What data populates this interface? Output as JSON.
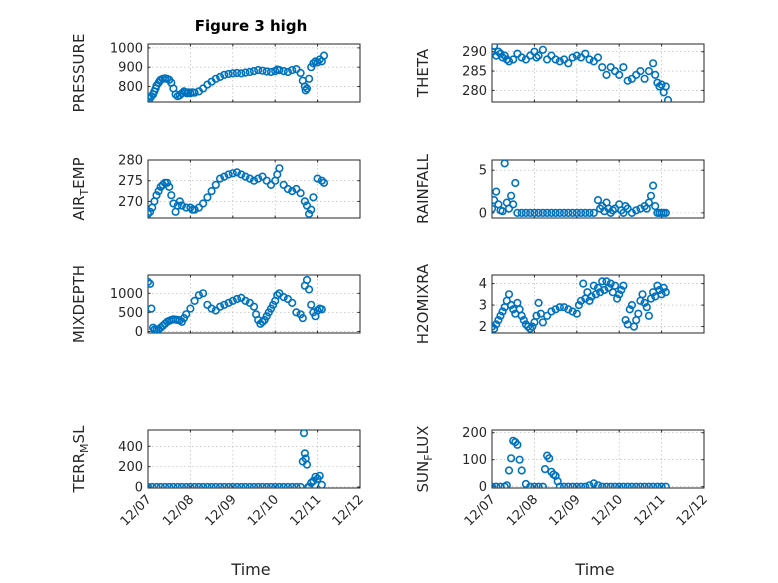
{
  "figure": {
    "title": "Figure 3 high",
    "xlabel": "Time"
  },
  "chart_data": [
    {
      "type": "scatter",
      "ylabel": "PRESSURE",
      "ylabel_sub": "",
      "ylabel_post": "",
      "xlim": [
        "12/07",
        "12/12"
      ],
      "xticks": [
        "12/07",
        "12/08",
        "12/09",
        "12/10",
        "12/11",
        "12/12"
      ],
      "ylim": [
        720,
        1020
      ],
      "yticks": [
        800,
        900,
        1000
      ],
      "grid": true,
      "marker_color": "#0072BD",
      "x": [
        0.0,
        0.05,
        0.08,
        0.12,
        0.15,
        0.18,
        0.2,
        0.25,
        0.28,
        0.3,
        0.35,
        0.4,
        0.45,
        0.5,
        0.55,
        0.6,
        0.65,
        0.7,
        0.75,
        0.8,
        0.85,
        0.88,
        0.92,
        0.95,
        1.0,
        1.05,
        1.1,
        1.2,
        1.3,
        1.4,
        1.5,
        1.6,
        1.7,
        1.8,
        1.9,
        2.0,
        2.1,
        2.2,
        2.3,
        2.4,
        2.5,
        2.6,
        2.7,
        2.8,
        2.9,
        3.0,
        3.05,
        3.1,
        3.2,
        3.3,
        3.4,
        3.5,
        3.6,
        3.65,
        3.7,
        3.72,
        3.75,
        3.8,
        3.85,
        3.9,
        3.95,
        4.0,
        4.05,
        4.1,
        4.15
      ],
      "y": [
        745,
        740,
        750,
        760,
        775,
        790,
        805,
        820,
        830,
        835,
        840,
        842,
        840,
        835,
        820,
        790,
        760,
        750,
        755,
        765,
        775,
        770,
        765,
        770,
        765,
        770,
        768,
        775,
        790,
        810,
        825,
        840,
        850,
        860,
        865,
        868,
        870,
        868,
        872,
        875,
        880,
        885,
        882,
        878,
        875,
        880,
        888,
        885,
        880,
        875,
        885,
        890,
        870,
        830,
        800,
        780,
        790,
        840,
        900,
        920,
        930,
        925,
        940,
        930,
        960
      ]
    },
    {
      "type": "scatter",
      "ylabel": "THETA",
      "ylabel_sub": "",
      "ylabel_post": "",
      "xlim": [
        "12/07",
        "12/12"
      ],
      "xticks": [
        "12/07",
        "12/08",
        "12/09",
        "12/10",
        "12/11",
        "12/12"
      ],
      "ylim": [
        277,
        292
      ],
      "yticks": [
        280,
        285,
        290
      ],
      "grid": true,
      "marker_color": "#0072BD",
      "x": [
        0.0,
        0.05,
        0.1,
        0.15,
        0.2,
        0.25,
        0.3,
        0.35,
        0.4,
        0.5,
        0.6,
        0.7,
        0.8,
        0.9,
        1.0,
        1.05,
        1.1,
        1.2,
        1.3,
        1.4,
        1.5,
        1.6,
        1.7,
        1.8,
        1.9,
        2.0,
        2.1,
        2.2,
        2.3,
        2.4,
        2.5,
        2.6,
        2.7,
        2.8,
        2.9,
        3.0,
        3.1,
        3.2,
        3.3,
        3.4,
        3.5,
        3.6,
        3.7,
        3.8,
        3.85,
        3.9,
        3.95,
        4.0,
        4.05,
        4.1,
        4.15
      ],
      "y": [
        290,
        291.5,
        289,
        290,
        289.5,
        288.5,
        289,
        288,
        287.5,
        288,
        289.5,
        288.5,
        288,
        289,
        290,
        288.5,
        289,
        290.5,
        288,
        289,
        288,
        287.5,
        288,
        287,
        288.5,
        289,
        288.5,
        289.5,
        288,
        287.5,
        288.5,
        286,
        284,
        286,
        285,
        284,
        286,
        282.5,
        283,
        284,
        285,
        283,
        285,
        287,
        284,
        282,
        281,
        281.5,
        279.5,
        281,
        277.5
      ]
    },
    {
      "type": "scatter",
      "ylabel": "AIR",
      "ylabel_sub": "T",
      "ylabel_post": "EMP",
      "xlim": [
        "12/07",
        "12/12"
      ],
      "xticks": [
        "12/07",
        "12/08",
        "12/09",
        "12/10",
        "12/11",
        "12/12"
      ],
      "ylim": [
        266,
        280
      ],
      "yticks": [
        270,
        275,
        280
      ],
      "grid": true,
      "marker_color": "#0072BD",
      "x": [
        0.0,
        0.05,
        0.1,
        0.15,
        0.2,
        0.25,
        0.3,
        0.35,
        0.4,
        0.45,
        0.5,
        0.55,
        0.6,
        0.65,
        0.7,
        0.75,
        0.8,
        0.9,
        1.0,
        1.05,
        1.1,
        1.2,
        1.3,
        1.4,
        1.5,
        1.6,
        1.7,
        1.8,
        1.9,
        2.0,
        2.1,
        2.2,
        2.3,
        2.4,
        2.5,
        2.6,
        2.7,
        2.8,
        2.9,
        3.0,
        3.05,
        3.1,
        3.2,
        3.3,
        3.4,
        3.5,
        3.6,
        3.7,
        3.75,
        3.8,
        3.85,
        3.9,
        4.0,
        4.1,
        4.15
      ],
      "y": [
        267,
        267.5,
        268.5,
        270,
        271.5,
        272.5,
        273.5,
        274,
        274.5,
        274.5,
        273.5,
        271.5,
        269.5,
        267.5,
        269,
        270,
        269,
        268.5,
        268.5,
        268,
        268,
        268.5,
        269.5,
        271,
        272.5,
        274,
        275.5,
        276,
        276.5,
        276.8,
        277,
        276.5,
        276,
        275.5,
        275,
        275.5,
        276,
        275,
        274,
        275,
        276.5,
        278,
        274,
        273,
        272.5,
        273,
        272,
        270,
        269,
        267,
        268,
        271,
        275.5,
        275,
        274.5
      ]
    },
    {
      "type": "scatter",
      "ylabel": "RAINFALL",
      "ylabel_sub": "",
      "ylabel_post": "",
      "xlim": [
        "12/07",
        "12/12"
      ],
      "xticks": [
        "12/07",
        "12/08",
        "12/09",
        "12/10",
        "12/11",
        "12/12"
      ],
      "ylim": [
        -0.6,
        6.2
      ],
      "yticks": [
        0,
        5
      ],
      "grid": true,
      "marker_color": "#0072BD",
      "x": [
        0.0,
        0.05,
        0.1,
        0.15,
        0.2,
        0.25,
        0.3,
        0.35,
        0.4,
        0.45,
        0.5,
        0.55,
        0.6,
        0.7,
        0.8,
        0.9,
        1.0,
        1.1,
        1.2,
        1.3,
        1.4,
        1.5,
        1.6,
        1.7,
        1.8,
        1.9,
        2.0,
        2.1,
        2.2,
        2.3,
        2.4,
        2.5,
        2.55,
        2.6,
        2.65,
        2.7,
        2.75,
        2.8,
        2.85,
        2.9,
        3.0,
        3.05,
        3.1,
        3.15,
        3.2,
        3.3,
        3.4,
        3.5,
        3.6,
        3.65,
        3.7,
        3.75,
        3.8,
        3.85,
        3.9,
        3.95,
        4.0,
        4.05,
        4.1
      ],
      "y": [
        0.5,
        1.5,
        2.5,
        1.0,
        0.3,
        0.2,
        5.8,
        1.2,
        0.5,
        2.0,
        1.0,
        3.5,
        0.0,
        0.0,
        0.0,
        0.0,
        0.0,
        0.0,
        0.0,
        0.0,
        0.0,
        0.0,
        0.0,
        0.0,
        0.0,
        0.0,
        0.0,
        0.0,
        0.0,
        0.0,
        0.0,
        1.5,
        0.5,
        0.8,
        0.2,
        1.2,
        0.5,
        0.0,
        0.3,
        0.5,
        1.0,
        0.3,
        0.0,
        0.8,
        0.5,
        0.0,
        0.3,
        0.5,
        0.8,
        0.5,
        1.2,
        2.0,
        3.2,
        0.8,
        0.0,
        0.0,
        0.0,
        0.0,
        0.0
      ]
    },
    {
      "type": "scatter",
      "ylabel": "MIXDEPTH",
      "ylabel_sub": "",
      "ylabel_post": "",
      "xlim": [
        "12/07",
        "12/12"
      ],
      "xticks": [
        "12/07",
        "12/08",
        "12/09",
        "12/10",
        "12/11",
        "12/12"
      ],
      "ylim": [
        -40,
        1480
      ],
      "yticks": [
        0,
        500,
        1000
      ],
      "grid": true,
      "marker_color": "#0072BD",
      "x": [
        0.0,
        0.05,
        0.08,
        0.12,
        0.15,
        0.2,
        0.25,
        0.3,
        0.35,
        0.4,
        0.45,
        0.5,
        0.55,
        0.6,
        0.65,
        0.7,
        0.75,
        0.8,
        0.85,
        0.9,
        1.0,
        1.1,
        1.2,
        1.3,
        1.4,
        1.5,
        1.6,
        1.7,
        1.8,
        1.9,
        2.0,
        2.1,
        2.2,
        2.3,
        2.4,
        2.5,
        2.55,
        2.6,
        2.65,
        2.7,
        2.75,
        2.8,
        2.85,
        2.9,
        2.95,
        3.0,
        3.05,
        3.1,
        3.2,
        3.3,
        3.4,
        3.5,
        3.6,
        3.65,
        3.7,
        3.75,
        3.8,
        3.85,
        3.9,
        3.95,
        4.0,
        4.05,
        4.1
      ],
      "y": [
        1300,
        1250,
        600,
        100,
        50,
        40,
        60,
        100,
        150,
        200,
        250,
        280,
        300,
        320,
        310,
        300,
        290,
        250,
        350,
        450,
        600,
        800,
        950,
        1000,
        700,
        600,
        550,
        650,
        700,
        750,
        800,
        850,
        880,
        800,
        750,
        650,
        450,
        300,
        200,
        250,
        300,
        400,
        500,
        600,
        700,
        800,
        950,
        1000,
        900,
        850,
        750,
        500,
        450,
        350,
        1200,
        1350,
        1100,
        700,
        500,
        400,
        550,
        600,
        580
      ]
    },
    {
      "type": "scatter",
      "ylabel": "H2OMIXRA",
      "ylabel_sub": "",
      "ylabel_post": "",
      "xlim": [
        "12/07",
        "12/12"
      ],
      "xticks": [
        "12/07",
        "12/08",
        "12/09",
        "12/10",
        "12/11",
        "12/12"
      ],
      "ylim": [
        1.7,
        4.4
      ],
      "yticks": [
        2,
        3,
        4
      ],
      "grid": true,
      "marker_color": "#0072BD",
      "x": [
        0.0,
        0.05,
        0.1,
        0.15,
        0.2,
        0.25,
        0.3,
        0.35,
        0.4,
        0.45,
        0.5,
        0.55,
        0.6,
        0.65,
        0.7,
        0.75,
        0.8,
        0.85,
        0.9,
        0.95,
        1.0,
        1.05,
        1.1,
        1.15,
        1.2,
        1.3,
        1.4,
        1.5,
        1.6,
        1.7,
        1.8,
        1.9,
        2.0,
        2.05,
        2.1,
        2.15,
        2.2,
        2.25,
        2.3,
        2.35,
        2.4,
        2.45,
        2.5,
        2.55,
        2.6,
        2.65,
        2.7,
        2.75,
        2.8,
        2.85,
        2.9,
        2.95,
        3.0,
        3.05,
        3.1,
        3.15,
        3.2,
        3.25,
        3.3,
        3.35,
        3.4,
        3.45,
        3.5,
        3.55,
        3.6,
        3.65,
        3.7,
        3.75,
        3.8,
        3.85,
        3.9,
        3.95,
        4.0,
        4.05,
        4.1
      ],
      "y": [
        2.0,
        1.9,
        2.1,
        2.3,
        2.5,
        2.7,
        2.9,
        3.2,
        3.5,
        3.0,
        2.8,
        2.6,
        3.1,
        2.8,
        2.5,
        2.3,
        2.1,
        2.0,
        1.9,
        2.0,
        2.2,
        2.5,
        3.1,
        2.6,
        2.2,
        2.5,
        2.7,
        2.8,
        2.9,
        2.9,
        2.8,
        2.7,
        2.6,
        3.0,
        3.2,
        4.0,
        3.3,
        3.6,
        3.2,
        3.4,
        3.9,
        3.5,
        3.8,
        3.6,
        4.1,
        3.7,
        4.1,
        3.8,
        4.0,
        3.6,
        3.9,
        3.3,
        3.5,
        3.7,
        3.9,
        2.3,
        2.1,
        2.8,
        3.0,
        2.0,
        2.3,
        2.6,
        3.2,
        3.5,
        3.1,
        2.9,
        2.5,
        3.3,
        3.6,
        3.4,
        3.9,
        3.7,
        3.5,
        3.8,
        3.6
      ]
    },
    {
      "type": "scatter",
      "ylabel": "TERR",
      "ylabel_sub": "M",
      "ylabel_post": "SL",
      "xlim": [
        "12/07",
        "12/12"
      ],
      "xticks": [
        "12/07",
        "12/08",
        "12/09",
        "12/10",
        "12/11",
        "12/12"
      ],
      "ylim": [
        -10,
        560
      ],
      "yticks": [
        0,
        200,
        400
      ],
      "grid": true,
      "marker_color": "#0072BD",
      "x": [
        0.0,
        0.1,
        0.2,
        0.3,
        0.4,
        0.5,
        0.6,
        0.7,
        0.8,
        0.9,
        1.0,
        1.1,
        1.2,
        1.3,
        1.4,
        1.5,
        1.6,
        1.7,
        1.8,
        1.9,
        2.0,
        2.1,
        2.2,
        2.3,
        2.4,
        2.5,
        2.6,
        2.7,
        2.8,
        2.9,
        3.0,
        3.1,
        3.2,
        3.3,
        3.4,
        3.5,
        3.6,
        3.65,
        3.68,
        3.7,
        3.72,
        3.75,
        3.78,
        3.8,
        3.85,
        3.9,
        3.95,
        4.0,
        4.05,
        4.1
      ],
      "y": [
        0,
        0,
        0,
        0,
        0,
        0,
        0,
        0,
        0,
        0,
        0,
        0,
        0,
        0,
        0,
        0,
        0,
        0,
        0,
        0,
        0,
        0,
        0,
        0,
        0,
        0,
        0,
        0,
        0,
        0,
        0,
        0,
        0,
        0,
        0,
        0,
        0,
        250,
        530,
        330,
        280,
        220,
        0,
        0,
        40,
        60,
        100,
        80,
        110,
        20
      ]
    },
    {
      "type": "scatter",
      "ylabel": "SUN",
      "ylabel_sub": "F",
      "ylabel_post": "LUX",
      "xlim": [
        "12/07",
        "12/12"
      ],
      "xticks": [
        "12/07",
        "12/08",
        "12/09",
        "12/10",
        "12/11",
        "12/12"
      ],
      "ylim": [
        -5,
        210
      ],
      "yticks": [
        0,
        100,
        200
      ],
      "grid": true,
      "marker_color": "#0072BD",
      "x": [
        0.0,
        0.1,
        0.2,
        0.3,
        0.35,
        0.4,
        0.45,
        0.5,
        0.55,
        0.6,
        0.65,
        0.7,
        0.8,
        0.9,
        1.0,
        1.1,
        1.2,
        1.25,
        1.3,
        1.35,
        1.4,
        1.45,
        1.5,
        1.55,
        1.6,
        1.7,
        1.8,
        1.9,
        2.0,
        2.1,
        2.2,
        2.3,
        2.4,
        2.5,
        2.6,
        2.7,
        2.8,
        2.9,
        3.0,
        3.1,
        3.2,
        3.3,
        3.4,
        3.5,
        3.6,
        3.7,
        3.8,
        3.9,
        4.0,
        4.1
      ],
      "y": [
        0,
        0,
        0,
        0,
        5,
        60,
        105,
        170,
        165,
        155,
        100,
        60,
        10,
        0,
        0,
        0,
        0,
        65,
        115,
        105,
        55,
        45,
        40,
        20,
        0,
        0,
        0,
        0,
        0,
        0,
        0,
        5,
        12,
        5,
        0,
        0,
        0,
        0,
        0,
        0,
        0,
        0,
        0,
        0,
        0,
        0,
        0,
        0,
        0,
        0
      ]
    }
  ]
}
